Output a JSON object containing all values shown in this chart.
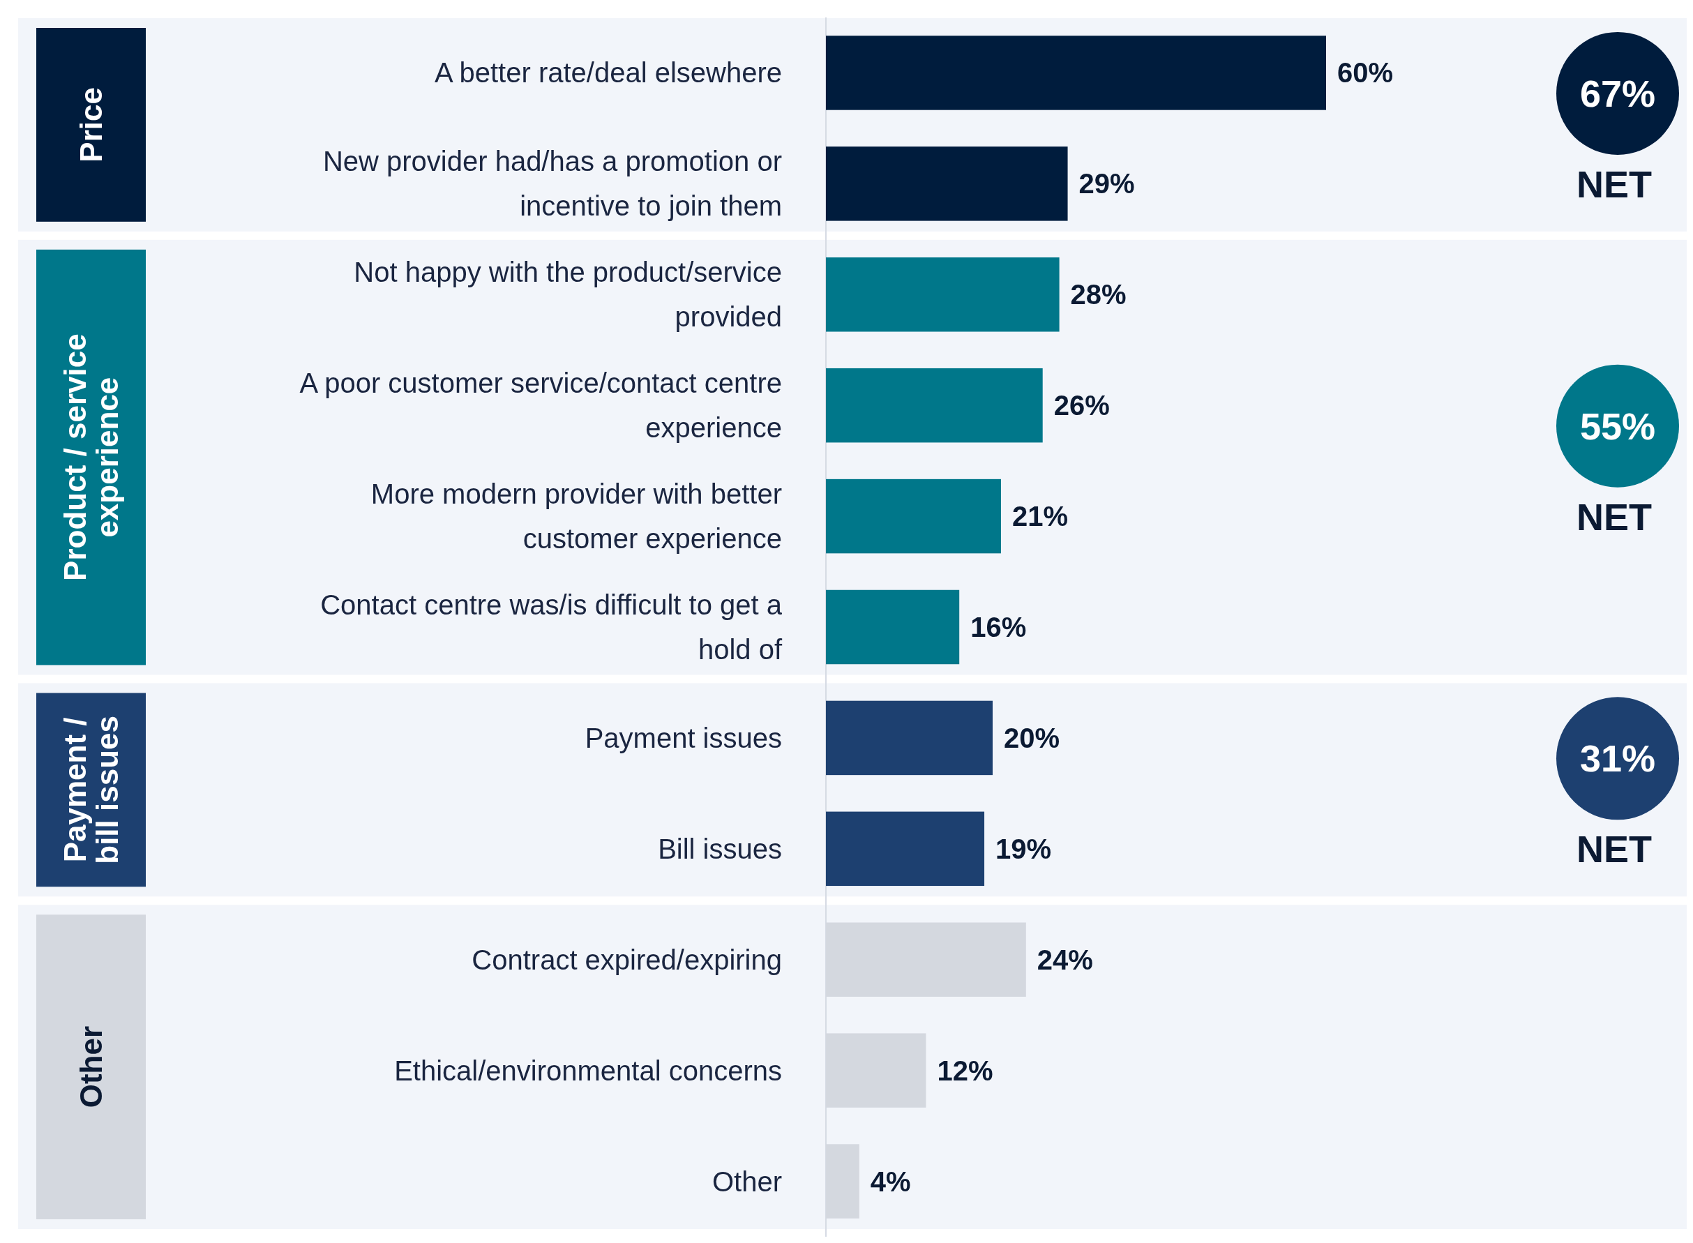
{
  "chart_data": {
    "type": "bar",
    "orientation": "horizontal",
    "categories": [
      "A better rate/deal elsewhere",
      "New provider had/has a promotion or incentive to join them",
      "Not happy with the product/service provided",
      "A poor customer service/contact centre experience",
      "More modern provider with better customer experience",
      "Contact centre was/is difficult to get a hold of",
      "Payment issues",
      "Bill issues",
      "Contract expired/expiring",
      "Ethical/environmental concerns",
      "Other"
    ],
    "values": [
      60,
      29,
      28,
      26,
      21,
      16,
      20,
      19,
      24,
      12,
      4
    ],
    "colors": [
      "#001c3d",
      "#001c3d",
      "#00778a",
      "#00778a",
      "#00778a",
      "#00778a",
      "#1d4070",
      "#1d4070",
      "#d4d8df",
      "#d4d8df",
      "#d4d8df"
    ],
    "value_labels": [
      "60%",
      "29%",
      "28%",
      "26%",
      "21%",
      "16%",
      "20%",
      "19%",
      "24%",
      "12%",
      "4%"
    ],
    "bands": [
      {
        "axis": "y",
        "from": "A better rate/deal elsewhere",
        "to": "New provider had/has a promotion or incentive to join them",
        "label": "Price",
        "color": "#f2f5fa"
      },
      {
        "axis": "y",
        "from": "Not happy with the product/service provided",
        "to": "Contact centre was/is difficult to get a hold of",
        "label": "Product / service experience",
        "color": "#f2f5fa"
      },
      {
        "axis": "y",
        "from": "Payment issues",
        "to": "Bill issues",
        "label": "Payment / bill issues",
        "color": "#f2f5fa"
      },
      {
        "axis": "y",
        "from": "Contract expired/expiring",
        "to": "Other",
        "label": "Other",
        "color": "#f2f5fa"
      }
    ],
    "annotations": [
      "67%",
      "NET",
      "55%",
      "NET",
      "31%",
      "NET"
    ]
  }
}
